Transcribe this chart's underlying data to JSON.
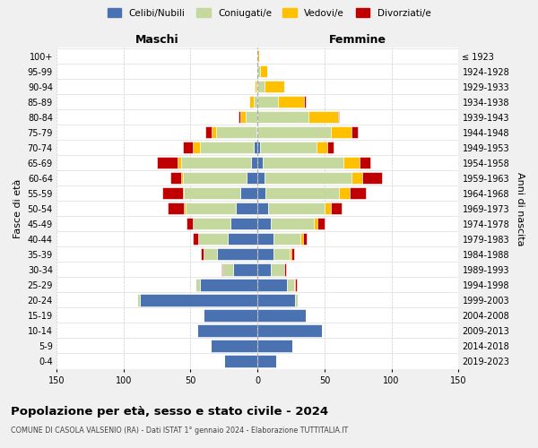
{
  "age_groups": [
    "0-4",
    "5-9",
    "10-14",
    "15-19",
    "20-24",
    "25-29",
    "30-34",
    "35-39",
    "40-44",
    "45-49",
    "50-54",
    "55-59",
    "60-64",
    "65-69",
    "70-74",
    "75-79",
    "80-84",
    "85-89",
    "90-94",
    "95-99",
    "100+"
  ],
  "birth_years": [
    "2019-2023",
    "2014-2018",
    "2009-2013",
    "2004-2008",
    "1999-2003",
    "1994-1998",
    "1989-1993",
    "1984-1988",
    "1979-1983",
    "1974-1978",
    "1969-1973",
    "1964-1968",
    "1959-1963",
    "1954-1958",
    "1949-1953",
    "1944-1948",
    "1939-1943",
    "1934-1938",
    "1929-1933",
    "1924-1928",
    "≤ 1923"
  ],
  "maschi_celibi": [
    25,
    35,
    45,
    40,
    88,
    43,
    18,
    30,
    22,
    20,
    16,
    13,
    8,
    5,
    3,
    1,
    0,
    0,
    0,
    0,
    0
  ],
  "maschi_coniugati": [
    0,
    0,
    0,
    0,
    2,
    3,
    8,
    10,
    22,
    28,
    38,
    42,
    48,
    52,
    40,
    30,
    9,
    3,
    1,
    0,
    0
  ],
  "maschi_vedovi": [
    0,
    0,
    0,
    0,
    0,
    0,
    0,
    0,
    0,
    0,
    1,
    1,
    1,
    3,
    5,
    3,
    4,
    3,
    1,
    0,
    0
  ],
  "maschi_divorziati": [
    0,
    0,
    0,
    0,
    0,
    0,
    1,
    2,
    4,
    5,
    12,
    15,
    8,
    15,
    8,
    5,
    1,
    0,
    0,
    0,
    0
  ],
  "femmine_nubili": [
    14,
    26,
    48,
    36,
    28,
    22,
    10,
    12,
    12,
    10,
    8,
    6,
    5,
    4,
    2,
    0,
    0,
    0,
    0,
    0,
    0
  ],
  "femmine_coniugate": [
    0,
    0,
    0,
    0,
    2,
    5,
    10,
    12,
    20,
    32,
    42,
    55,
    65,
    60,
    42,
    55,
    38,
    15,
    5,
    2,
    0
  ],
  "femmine_vedove": [
    0,
    0,
    0,
    0,
    0,
    1,
    0,
    1,
    2,
    3,
    5,
    8,
    8,
    12,
    8,
    15,
    22,
    20,
    15,
    5,
    1
  ],
  "femmine_divorziate": [
    0,
    0,
    0,
    0,
    0,
    1,
    1,
    2,
    3,
    5,
    8,
    12,
    15,
    8,
    5,
    5,
    1,
    1,
    0,
    0,
    0
  ],
  "color_celibi": "#4a72b0",
  "color_coniugati": "#c5d99e",
  "color_vedovi": "#ffc000",
  "color_divorziati": "#c00000",
  "xlim": 150,
  "title": "Popolazione per età, sesso e stato civile - 2024",
  "subtitle": "COMUNE DI CASOLA VALSENIO (RA) - Dati ISTAT 1° gennaio 2024 - Elaborazione TUTTITALIA.IT",
  "ylabel_left": "Fasce di età",
  "ylabel_right": "Anni di nascita",
  "label_maschi": "Maschi",
  "label_femmine": "Femmine",
  "bg_color": "#f0f0f0",
  "plot_bg_color": "#ffffff",
  "legend_labels": [
    "Celibi/Nubili",
    "Coniugati/e",
    "Vedovi/e",
    "Divorziati/e"
  ]
}
